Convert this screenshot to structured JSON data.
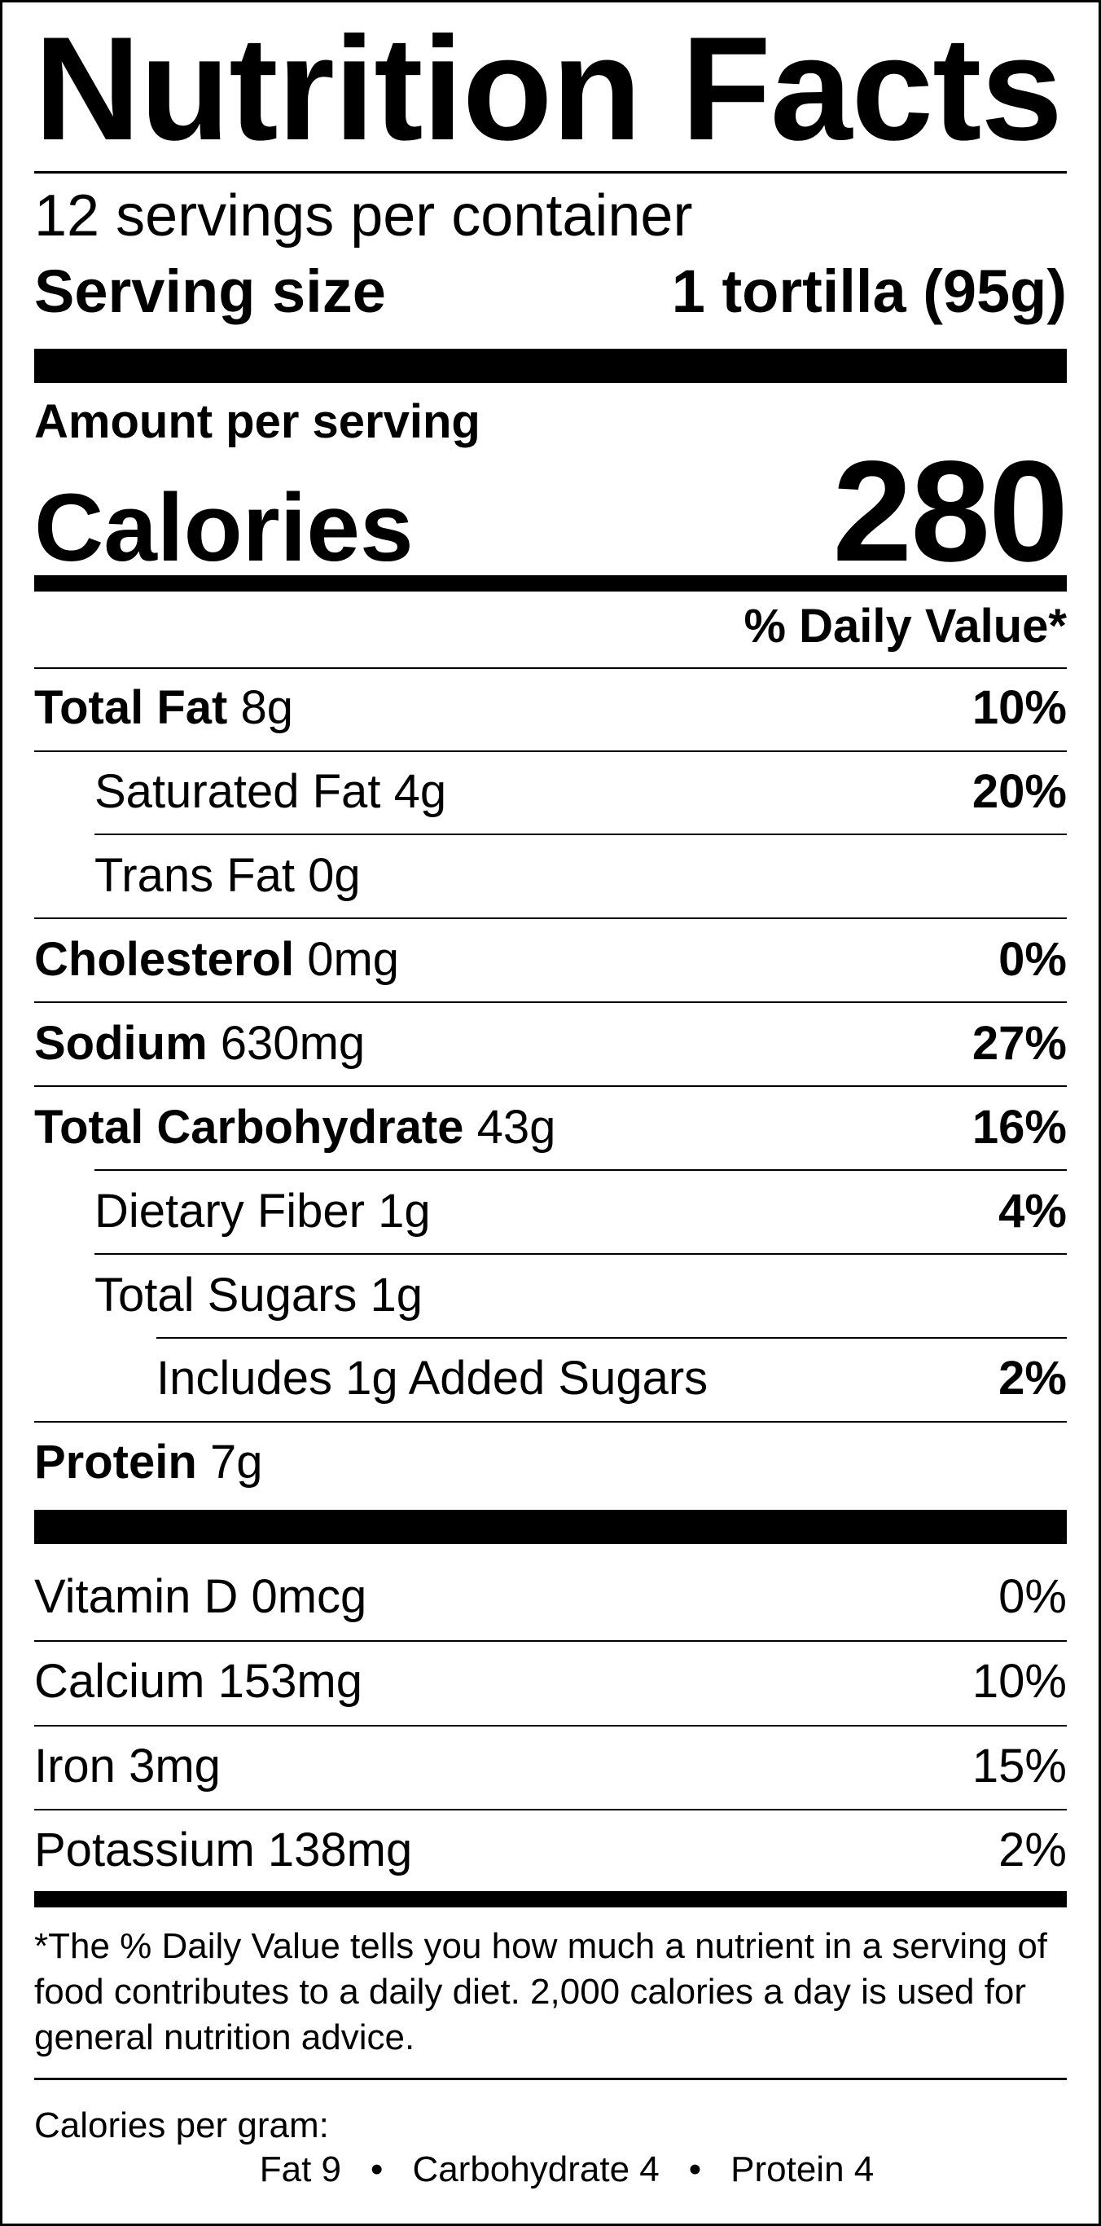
{
  "title": "Nutrition Facts",
  "servings_per_container": "12 servings per container",
  "serving_size": {
    "label": "Serving size",
    "value": "1 tortilla (95g)"
  },
  "amount_per_serving": "Amount per serving",
  "calories": {
    "label": "Calories",
    "value": "280"
  },
  "daily_value_header": "% Daily Value*",
  "nutrients": [
    {
      "name": "Total Fat",
      "amount": "8g",
      "dv": "10%"
    },
    {
      "name": "Saturated Fat",
      "amount": "4g",
      "dv": "20%"
    },
    {
      "name": "Trans Fat",
      "amount": "0g",
      "dv": ""
    },
    {
      "name": "Cholesterol",
      "amount": "0mg",
      "dv": "0%"
    },
    {
      "name": "Sodium",
      "amount": "630mg",
      "dv": "27%"
    },
    {
      "name": "Total Carbohydrate",
      "amount": "43g",
      "dv": "16%"
    },
    {
      "name": "Dietary Fiber",
      "amount": "1g",
      "dv": "4%"
    },
    {
      "name": "Total Sugars",
      "amount": "1g",
      "dv": ""
    },
    {
      "name": "Includes 1g Added Sugars",
      "amount": "",
      "dv": "2%"
    },
    {
      "name": "Protein",
      "amount": "7g",
      "dv": ""
    }
  ],
  "vitamins": [
    {
      "name": "Vitamin D",
      "amount": "0mcg",
      "dv": "0%"
    },
    {
      "name": "Calcium",
      "amount": "153mg",
      "dv": "10%"
    },
    {
      "name": "Iron",
      "amount": "3mg",
      "dv": "15%"
    },
    {
      "name": "Potassium",
      "amount": "138mg",
      "dv": "2%"
    }
  ],
  "footnote": "*The % Daily Value tells you how much a nutrient in a serving of food contributes to a daily diet. 2,000 calories a day is used for general nutrition advice.",
  "calories_per_gram": {
    "label": "Calories per gram:",
    "fat": "Fat 9",
    "carbohydrate": "Carbohydrate 4",
    "protein": "Protein 4",
    "separator": "•"
  }
}
